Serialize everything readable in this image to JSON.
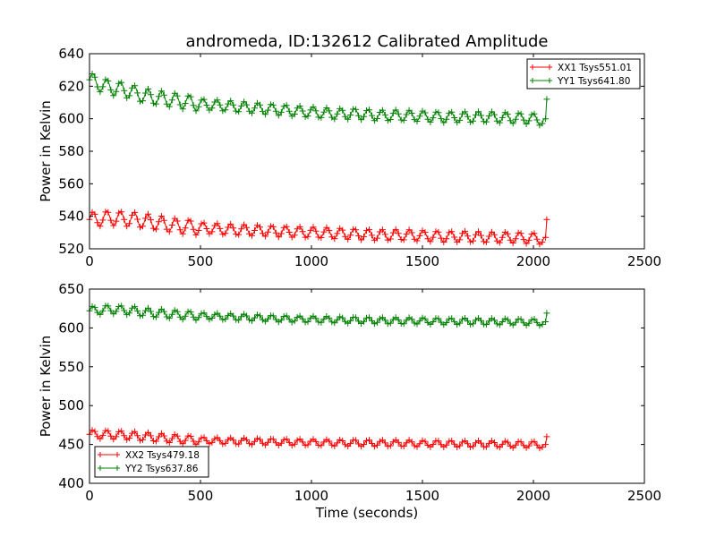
{
  "figure": {
    "title": "andromeda, ID:132612 Calibrated Amplitude",
    "background": "#ffffff"
  },
  "chart_data": [
    {
      "type": "line",
      "title": "andromeda, ID:132612 Calibrated Amplitude",
      "xlabel": "",
      "ylabel": "Power in Kelvin",
      "xlim": [
        0,
        2500
      ],
      "ylim": [
        520,
        640
      ],
      "xticks": [
        "0",
        "500",
        "1000",
        "1500",
        "2000",
        "2500"
      ],
      "yticks": [
        "520",
        "540",
        "560",
        "580",
        "600",
        "620",
        "640"
      ],
      "grid": false,
      "legend_position": "upper-right",
      "marker": "plus",
      "series": [
        {
          "name": "XX1 Tsys551.01",
          "color": "#ff0000",
          "x": [
            0,
            50,
            100,
            150,
            200,
            250,
            300,
            350,
            400,
            450,
            500,
            600,
            700,
            800,
            900,
            1000,
            1100,
            1200,
            1300,
            1400,
            1500,
            1600,
            1700,
            1800,
            1900,
            2000,
            2040,
            2050,
            2060
          ],
          "y": [
            538,
            538.5,
            539,
            538.5,
            538,
            537,
            536,
            535,
            534,
            533.5,
            533,
            532,
            531.5,
            531,
            530.5,
            530,
            529.5,
            529,
            528.5,
            528.5,
            528,
            527.5,
            527.5,
            527,
            527,
            526.5,
            526,
            527,
            529
          ],
          "ripple": 4,
          "end_spike": 538
        },
        {
          "name": "YY1 Tsys641.80",
          "color": "#008000",
          "x": [
            0,
            50,
            100,
            150,
            200,
            250,
            300,
            350,
            400,
            450,
            500,
            600,
            700,
            800,
            900,
            1000,
            1100,
            1200,
            1300,
            1400,
            1500,
            1600,
            1700,
            1800,
            1900,
            2000,
            2040,
            2050,
            2060
          ],
          "y": [
            624,
            621,
            619,
            618,
            616,
            614,
            613,
            612,
            611,
            610,
            609,
            608,
            607,
            606,
            605,
            604,
            603,
            603,
            602,
            602,
            601.5,
            601,
            601,
            601,
            600.5,
            600,
            599,
            600,
            602
          ],
          "ripple": 4,
          "end_spike": 612
        }
      ]
    },
    {
      "type": "line",
      "title": "",
      "xlabel": "Time (seconds)",
      "ylabel": "Power in Kelvin",
      "xlim": [
        0,
        2500
      ],
      "ylim": [
        400,
        650
      ],
      "xticks": [
        "0",
        "500",
        "1000",
        "1500",
        "2000",
        "2500"
      ],
      "yticks": [
        "400",
        "450",
        "500",
        "550",
        "600",
        "650"
      ],
      "grid": false,
      "legend_position": "lower-left",
      "marker": "plus",
      "series": [
        {
          "name": "XX2 Tsys479.18",
          "color": "#ff0000",
          "x": [
            0,
            50,
            100,
            150,
            200,
            250,
            300,
            350,
            400,
            450,
            500,
            600,
            700,
            800,
            900,
            1000,
            1100,
            1200,
            1300,
            1400,
            1500,
            1600,
            1700,
            1800,
            1900,
            2000,
            2040,
            2050,
            2060
          ],
          "y": [
            463,
            463,
            462.5,
            462,
            461,
            460,
            459,
            458,
            457,
            456,
            455.5,
            454.5,
            454,
            453.5,
            453,
            452.5,
            452,
            452,
            451.5,
            451.5,
            451,
            451,
            450.5,
            450.5,
            450,
            450,
            449,
            450,
            452
          ],
          "ripple": 5,
          "end_spike": 460
        },
        {
          "name": "YY2 Tsys637.86",
          "color": "#008000",
          "x": [
            0,
            50,
            100,
            150,
            200,
            250,
            300,
            350,
            400,
            450,
            500,
            600,
            700,
            800,
            900,
            1000,
            1100,
            1200,
            1300,
            1400,
            1500,
            1600,
            1700,
            1800,
            1900,
            2000,
            2040,
            2050,
            2060
          ],
          "y": [
            622,
            623,
            624,
            623,
            622,
            620,
            619,
            618,
            617,
            616,
            615.5,
            614.5,
            613.5,
            612.5,
            611.5,
            611,
            610.5,
            610,
            609.5,
            609,
            609,
            608.5,
            608.5,
            608,
            608,
            607.5,
            607,
            608,
            610
          ],
          "ripple": 5,
          "end_spike": 619
        }
      ]
    }
  ]
}
